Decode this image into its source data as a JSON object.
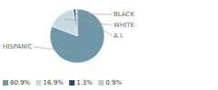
{
  "chart_data": {
    "type": "pie",
    "categories": [
      "HISPANIC",
      "WHITE",
      "BLACK",
      "A.I."
    ],
    "values": [
      80.9,
      16.9,
      1.3,
      0.9
    ],
    "value_labels": [
      "80.9%",
      "16.9%",
      "1.3%",
      "0.9%"
    ],
    "colors": [
      "#6e97a8",
      "#c8dae0",
      "#2d4a6b",
      "#b8cdd4"
    ],
    "legend": "lower left"
  }
}
